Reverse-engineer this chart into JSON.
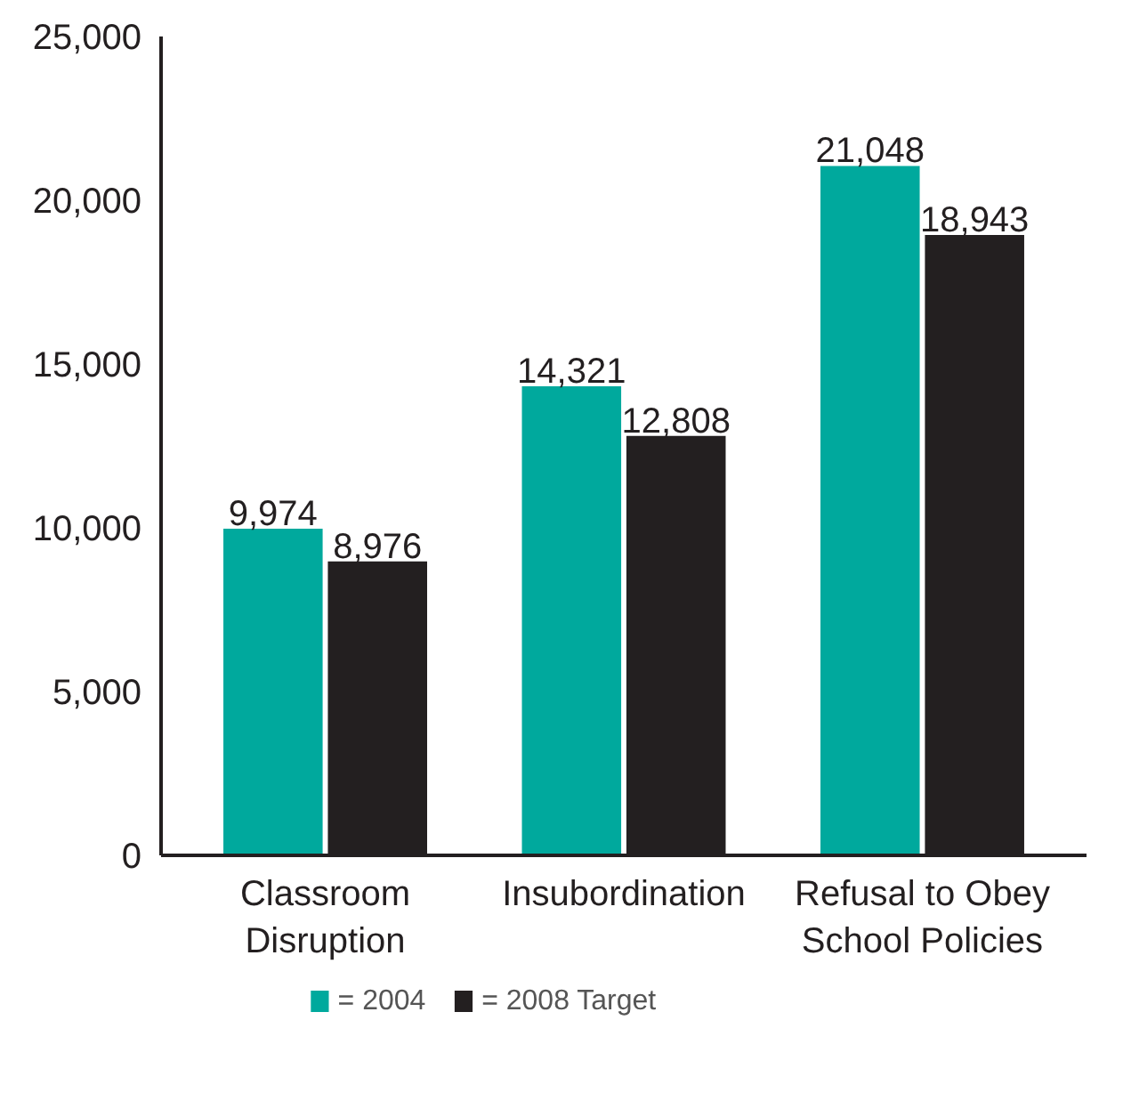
{
  "chart_data": {
    "type": "bar",
    "categories": [
      "Classroom\nDisruption",
      "Insubordination",
      "Refusal to Obey\nSchool Policies"
    ],
    "series": [
      {
        "name": "= 2004",
        "color": "#00a99d",
        "values": [
          9974,
          14321,
          21048
        ]
      },
      {
        "name": "= 2008 Target",
        "color": "#231f20",
        "values": [
          8976,
          12808,
          18943
        ]
      }
    ],
    "ylim": [
      0,
      25000
    ],
    "yticks": [
      0,
      {
        "value": 5000,
        "label": "5,000"
      },
      {
        "value": 10000,
        "label": "10,000"
      },
      {
        "value": 15000,
        "label": "15,000"
      },
      {
        "value": 20000,
        "label": "20,000"
      },
      {
        "value": 25000,
        "label": "25,000"
      }
    ],
    "value_labels": [
      [
        "9,974",
        "14,321",
        "21,048"
      ],
      [
        "8,976",
        "12,808",
        "18,943"
      ]
    ],
    "grid": false,
    "legend": "bottom left"
  }
}
